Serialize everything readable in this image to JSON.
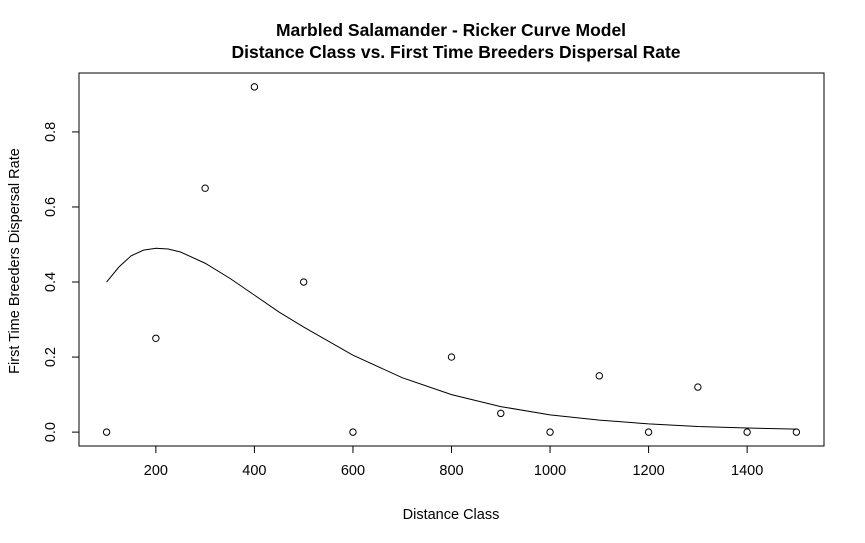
{
  "chart_data": {
    "type": "scatter",
    "title": "Marbled Salamander - Ricker Curve Model",
    "subtitle": "Distance Class vs. First Time Breeders Dispersal Rate",
    "xlabel": "Distance Class",
    "ylabel": "First Time Breeders Dispersal Rate",
    "xlim": [
      44,
      1556
    ],
    "ylim": [
      -0.037,
      0.957
    ],
    "x_ticks": [
      "200",
      "400",
      "600",
      "800",
      "1000",
      "1200",
      "1400"
    ],
    "x_tick_values": [
      200,
      400,
      600,
      800,
      1000,
      1200,
      1400
    ],
    "y_ticks": [
      "0.0",
      "0.2",
      "0.4",
      "0.6",
      "0.8"
    ],
    "y_tick_values": [
      0.0,
      0.2,
      0.4,
      0.6,
      0.8
    ],
    "grid": false,
    "series": [
      {
        "points": [
          {
            "x": 100,
            "y": 0.0
          },
          {
            "x": 200,
            "y": 0.25
          },
          {
            "x": 300,
            "y": 0.65
          },
          {
            "x": 400,
            "y": 0.92
          },
          {
            "x": 500,
            "y": 0.4
          },
          {
            "x": 600,
            "y": 0.0
          },
          {
            "x": 800,
            "y": 0.2
          },
          {
            "x": 900,
            "y": 0.05
          },
          {
            "x": 1000,
            "y": 0.0
          },
          {
            "x": 1100,
            "y": 0.15
          },
          {
            "x": 1200,
            "y": 0.0
          },
          {
            "x": 1300,
            "y": 0.12
          },
          {
            "x": 1400,
            "y": 0.0
          },
          {
            "x": 1500,
            "y": 0.0
          }
        ]
      },
      {
        "line": [
          {
            "x": 100,
            "y": 0.4
          },
          {
            "x": 125,
            "y": 0.44
          },
          {
            "x": 150,
            "y": 0.47
          },
          {
            "x": 175,
            "y": 0.485
          },
          {
            "x": 200,
            "y": 0.49
          },
          {
            "x": 225,
            "y": 0.488
          },
          {
            "x": 250,
            "y": 0.48
          },
          {
            "x": 300,
            "y": 0.45
          },
          {
            "x": 350,
            "y": 0.41
          },
          {
            "x": 400,
            "y": 0.365
          },
          {
            "x": 450,
            "y": 0.32
          },
          {
            "x": 500,
            "y": 0.28
          },
          {
            "x": 600,
            "y": 0.205
          },
          {
            "x": 700,
            "y": 0.145
          },
          {
            "x": 800,
            "y": 0.1
          },
          {
            "x": 900,
            "y": 0.068
          },
          {
            "x": 1000,
            "y": 0.046
          },
          {
            "x": 1100,
            "y": 0.032
          },
          {
            "x": 1200,
            "y": 0.022
          },
          {
            "x": 1300,
            "y": 0.015
          },
          {
            "x": 1400,
            "y": 0.011
          },
          {
            "x": 1500,
            "y": 0.008
          }
        ]
      }
    ]
  }
}
